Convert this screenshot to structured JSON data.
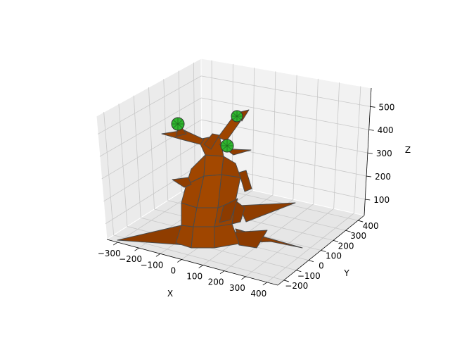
{
  "chart_data": {
    "type": "3d-surface",
    "title": "",
    "xlabel": "X",
    "ylabel": "Y",
    "zlabel": "Z",
    "x_ticks": [
      -300,
      -200,
      -100,
      0,
      100,
      200,
      300,
      400
    ],
    "y_ticks": [
      -200,
      -100,
      0,
      100,
      200,
      300,
      400
    ],
    "z_ticks": [
      100,
      200,
      300,
      400,
      500
    ],
    "x_tick_labels": [
      "−300",
      "−200",
      "−100",
      "0",
      "100",
      "200",
      "300",
      "400"
    ],
    "y_tick_labels": [
      "−200",
      "−100",
      "0",
      "100",
      "200",
      "300",
      "400"
    ],
    "z_tick_labels": [
      "100",
      "200",
      "300",
      "400",
      "500"
    ],
    "xlim": [
      -350,
      450
    ],
    "ylim": [
      -250,
      450
    ],
    "zlim": [
      30,
      580
    ],
    "grid": true,
    "mesh_color": "#9a4300",
    "mesh_edge_color": "#4a4a4a",
    "leaf_color": "#2fb52f",
    "pane_color": "#f2f2f2",
    "objects": [
      {
        "part": "trunk-base-root-spread",
        "z": [
          40,
          110
        ]
      },
      {
        "part": "trunk-body",
        "z": [
          100,
          420
        ]
      },
      {
        "part": "branch-left",
        "z": [
          380,
          470
        ]
      },
      {
        "part": "branch-right",
        "z": [
          400,
          500
        ]
      },
      {
        "part": "leaf-cluster-left",
        "z": 470
      },
      {
        "part": "leaf-cluster-right",
        "z": 500
      },
      {
        "part": "leaf-cluster-center",
        "z": 430
      }
    ]
  }
}
